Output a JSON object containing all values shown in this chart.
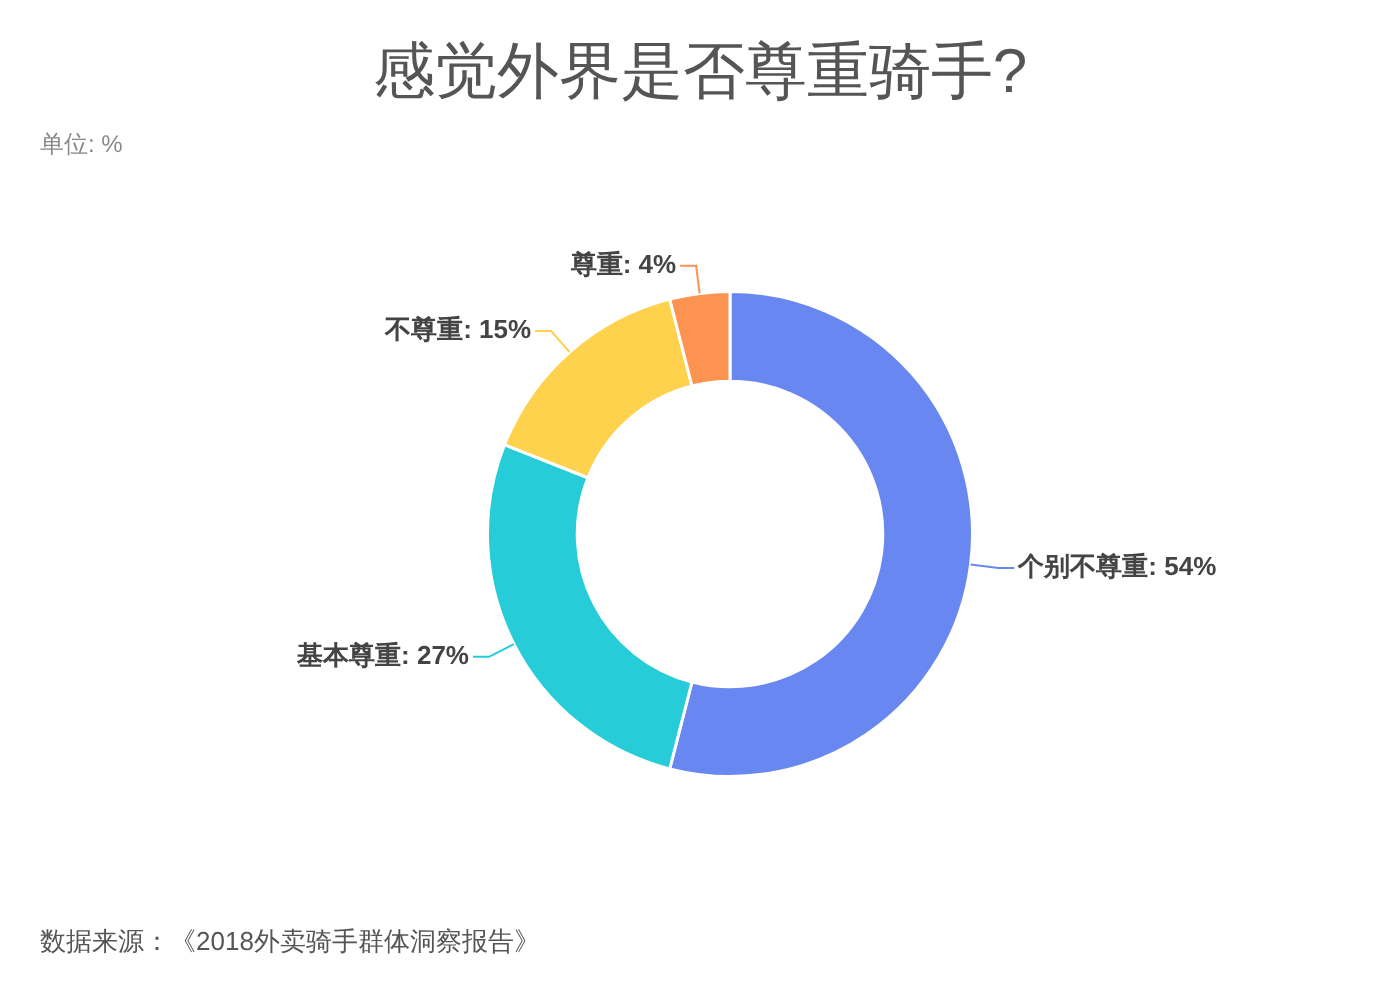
{
  "chart_data": {
    "type": "donut",
    "title": "感觉外界是否尊重骑手?",
    "subtitle": "单位: %",
    "categories": [
      "个别不尊重",
      "基本尊重",
      "不尊重",
      "尊重"
    ],
    "values": [
      54,
      27,
      15,
      4
    ],
    "value_labels": [
      "54%",
      "27%",
      "15%",
      "4%"
    ],
    "colors": [
      "#6987f0",
      "#26cdd8",
      "#fed24c",
      "#fc9350"
    ],
    "annotations": [
      "数据来源：《2018外卖骑手群体洞察报告》"
    ]
  }
}
